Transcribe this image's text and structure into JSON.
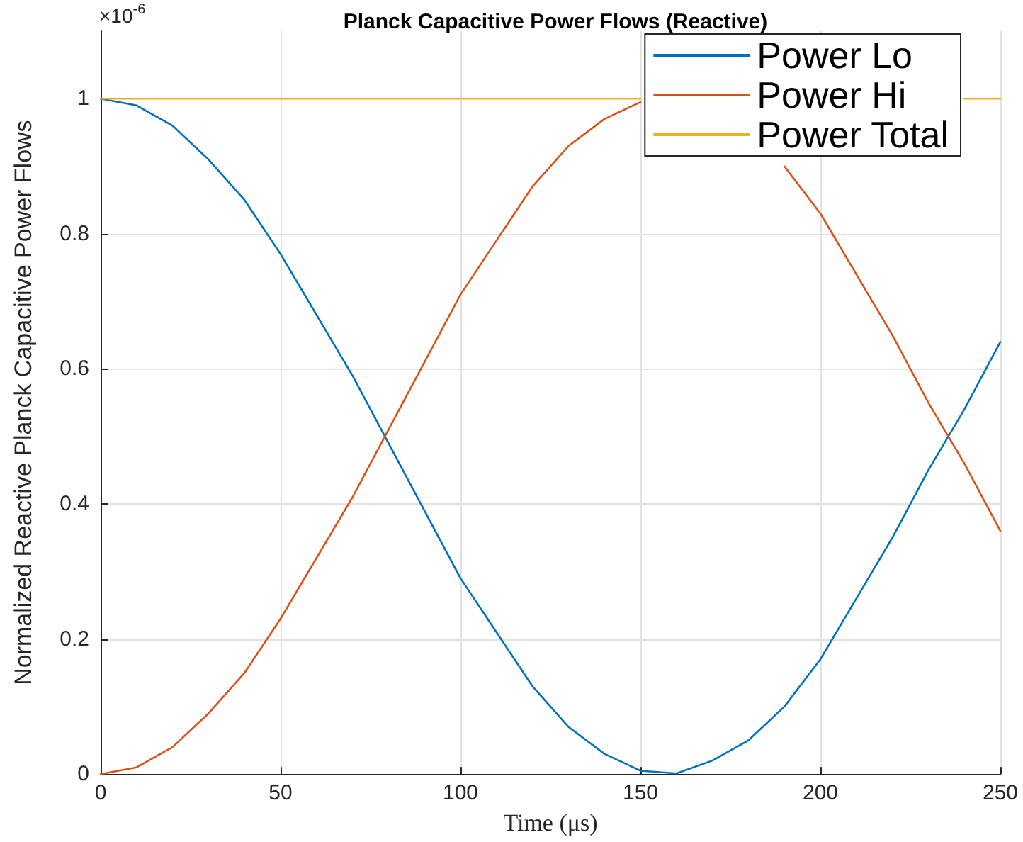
{
  "chart_data": {
    "type": "line",
    "title": "Planck Capacitive Power Flows (Reactive)",
    "xlabel": "Time (μs)",
    "ylabel": "Normalized Reactive Planck Capacitive Power Flows",
    "annotations": [
      "×10$^{-6}$"
    ],
    "x": [
      0,
      10,
      20,
      30,
      40,
      50,
      60,
      70,
      80,
      90,
      100,
      110,
      120,
      130,
      140,
      150,
      160,
      170,
      180,
      190,
      200,
      210,
      220,
      230,
      240,
      250
    ],
    "series": [
      {
        "name": "Power Lo",
        "color": "#0072bd",
        "values": [
          1.0,
          0.99,
          0.96,
          0.91,
          0.85,
          0.77,
          0.68,
          0.59,
          0.49,
          0.39,
          0.29,
          0.21,
          0.13,
          0.07,
          0.03,
          0.005,
          0.001,
          0.02,
          0.05,
          0.1,
          0.17,
          0.26,
          0.35,
          0.45,
          0.54,
          0.64
        ]
      },
      {
        "name": "Power Hi",
        "color": "#d95319",
        "values": [
          0.0,
          0.01,
          0.04,
          0.09,
          0.15,
          0.23,
          0.32,
          0.41,
          0.51,
          0.61,
          0.71,
          0.79,
          0.87,
          0.93,
          0.97,
          0.995,
          null,
          null,
          null,
          0.9,
          0.83,
          0.74,
          0.65,
          0.55,
          0.46,
          0.36
        ]
      },
      {
        "name": "Power Total",
        "color": "#edb120",
        "values": [
          1,
          1,
          1,
          1,
          1,
          1,
          1,
          1,
          1,
          1,
          1,
          1,
          1,
          1,
          1,
          1,
          null,
          null,
          null,
          null,
          null,
          null,
          null,
          null,
          1,
          1
        ]
      }
    ],
    "xlim": [
      0,
      250
    ],
    "xticks": [
      0,
      50,
      100,
      150,
      200,
      250
    ],
    "ylim": [
      0,
      1.1
    ],
    "yticks": [
      0,
      0.2,
      0.4,
      0.6,
      0.8,
      1
    ],
    "grid": true,
    "legend": "top right",
    "marker": "none",
    "line_style": "solid"
  }
}
